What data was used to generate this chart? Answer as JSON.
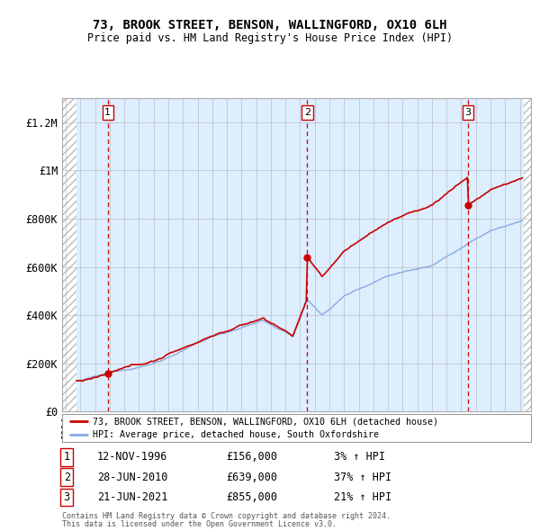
{
  "title1": "73, BROOK STREET, BENSON, WALLINGFORD, OX10 6LH",
  "title2": "Price paid vs. HM Land Registry's House Price Index (HPI)",
  "ylabel_ticks": [
    "£0",
    "£200K",
    "£400K",
    "£600K",
    "£800K",
    "£1M",
    "£1.2M"
  ],
  "ytick_values": [
    0,
    200000,
    400000,
    600000,
    800000,
    1000000,
    1200000
  ],
  "ylim": [
    0,
    1300000
  ],
  "xlim_start": 1993.75,
  "xlim_end": 2025.75,
  "data_start": 1994.75,
  "data_end": 2025.25,
  "transactions": [
    {
      "label": 1,
      "date": 1996.87,
      "price": 156000,
      "text": "12-NOV-1996",
      "price_text": "£156,000",
      "hpi_text": "3% ↑ HPI"
    },
    {
      "label": 2,
      "date": 2010.49,
      "price": 639000,
      "text": "28-JUN-2010",
      "price_text": "£639,000",
      "hpi_text": "37% ↑ HPI"
    },
    {
      "label": 3,
      "date": 2021.47,
      "price": 855000,
      "text": "21-JUN-2021",
      "price_text": "£855,000",
      "hpi_text": "21% ↑ HPI"
    }
  ],
  "legend_property": "73, BROOK STREET, BENSON, WALLINGFORD, OX10 6LH (detached house)",
  "legend_hpi": "HPI: Average price, detached house, South Oxfordshire",
  "footer1": "Contains HM Land Registry data © Crown copyright and database right 2024.",
  "footer2": "This data is licensed under the Open Government Licence v3.0.",
  "property_line_color": "#cc0000",
  "hpi_line_color": "#88aadd",
  "hatch_color": "#bbbbbb",
  "bg_color": "#ddeeff",
  "grid_color": "#aaaaaa",
  "dashed_line_color": "#cc0000",
  "legend_border_color": "#999999"
}
